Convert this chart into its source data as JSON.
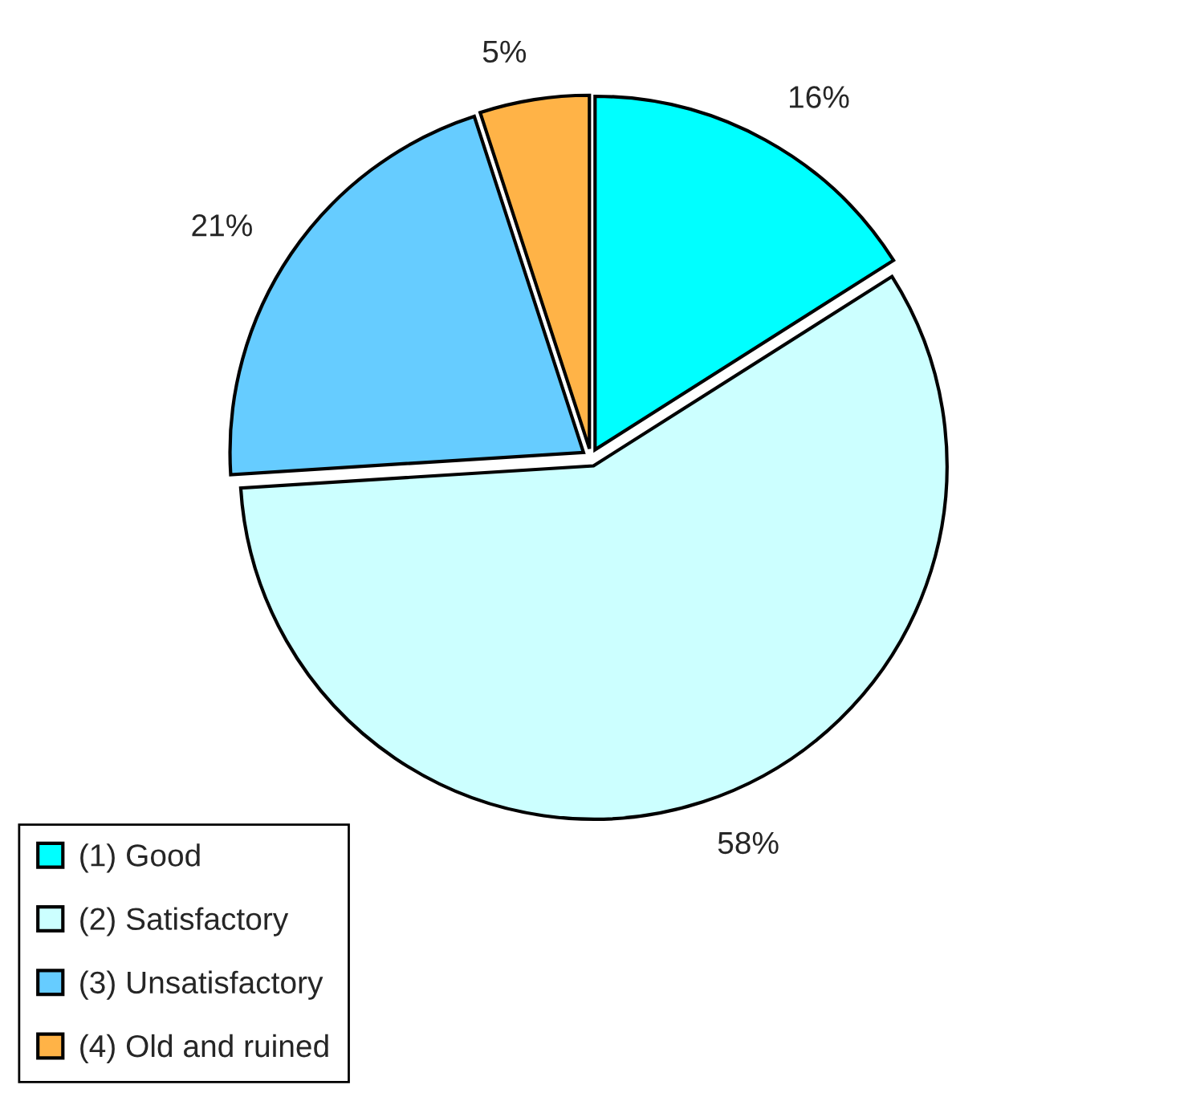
{
  "chart_data": {
    "type": "pie",
    "categories": [
      "(1) Good",
      "(2) Satisfactory",
      "(3) Unsatisfactory",
      "(4) Old and ruined"
    ],
    "values": [
      16,
      58,
      21,
      5
    ],
    "colors": [
      "#00ffff",
      "#ccffff",
      "#66ccff",
      "#ffb347"
    ],
    "value_labels": [
      "16%",
      "58%",
      "21%",
      "5%"
    ],
    "legend": "bottom left"
  }
}
